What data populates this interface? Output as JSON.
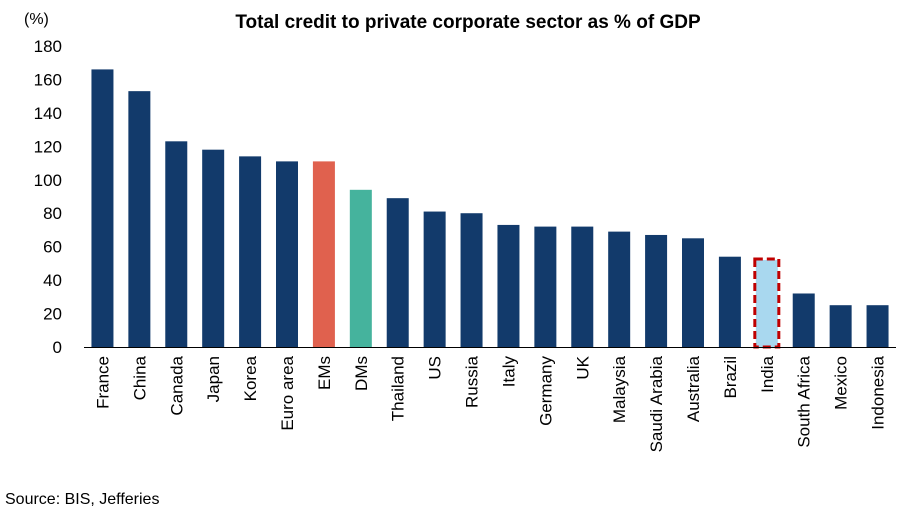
{
  "chart_data": {
    "type": "bar",
    "title": "Total credit to private corporate sector as % of GDP",
    "ylabel": "(%)",
    "xlabel": "",
    "ylim": [
      0,
      180
    ],
    "yticks": [
      0,
      20,
      40,
      60,
      80,
      100,
      120,
      140,
      160,
      180
    ],
    "grid": false,
    "categories": [
      "France",
      "China",
      "Canada",
      "Japan",
      "Korea",
      "Euro area",
      "EMs",
      "DMs",
      "Thailand",
      "US",
      "Russia",
      "Italy",
      "Germany",
      "UK",
      "Malaysia",
      "Saudi Arabia",
      "Australia",
      "Brazil",
      "India",
      "South Africa",
      "Mexico",
      "Indonesia"
    ],
    "values": [
      166,
      153,
      123,
      118,
      114,
      111,
      111,
      94,
      89,
      81,
      80,
      73,
      72,
      72,
      69,
      67,
      65,
      54,
      52,
      32,
      25,
      25
    ],
    "colors": {
      "default": "#123a6b",
      "EMs": "#e0614e",
      "DMs": "#45b39d",
      "India": "#a9d8ef",
      "highlight_border": "#c00000"
    },
    "highlighted": "India"
  },
  "footer": {
    "source": "Source: BIS, Jefferies"
  }
}
